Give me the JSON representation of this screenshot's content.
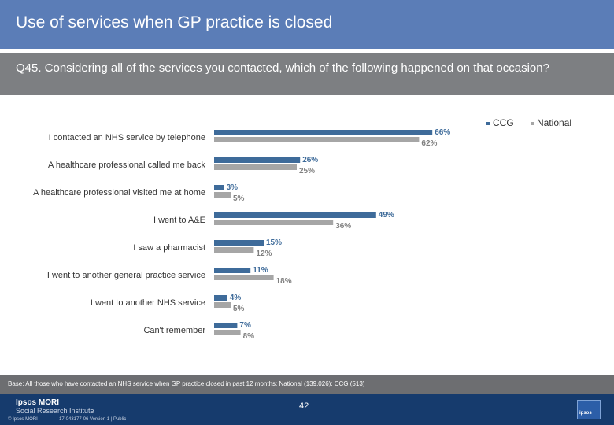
{
  "slide": {
    "title": "Use of services when GP practice is closed",
    "question": "Q45. Considering all of the services you contacted, which of the following happened on that occasion?",
    "base": "Base: All those who have contacted an NHS service when GP practice closed in past 12 months: National (139,026); CCG (513)",
    "page_number": "42"
  },
  "footer": {
    "brand_line1": "Ipsos MORI",
    "brand_line2": "Social Research Institute",
    "copyright": "© Ipsos MORI",
    "job_reference": "17-043177-06 Version 1 | Public",
    "logo_text": "ipsos"
  },
  "colors": {
    "ccg": "#3e6b9a",
    "national": "#a6a6a6",
    "ccg_label": "#3e6b9a",
    "national_label": "#7f7f7f",
    "title_bar": "#5b7db7",
    "question_bar": "#7d7f82"
  },
  "chart_data": {
    "type": "bar",
    "orientation": "horizontal",
    "categories": [
      "I contacted an NHS service by telephone",
      "A healthcare professional called me back",
      "A healthcare professional visited me at home",
      "I went to A&E",
      "I saw a pharmacist",
      "I went to another general practice service",
      "I went to another NHS service",
      "Can't remember"
    ],
    "series": [
      {
        "name": "CCG",
        "values": [
          66,
          26,
          3,
          49,
          15,
          11,
          4,
          7
        ]
      },
      {
        "name": "National",
        "values": [
          62,
          25,
          5,
          36,
          12,
          18,
          5,
          8
        ]
      }
    ],
    "unit": "%",
    "legend_position": "top-right",
    "grid": false
  }
}
